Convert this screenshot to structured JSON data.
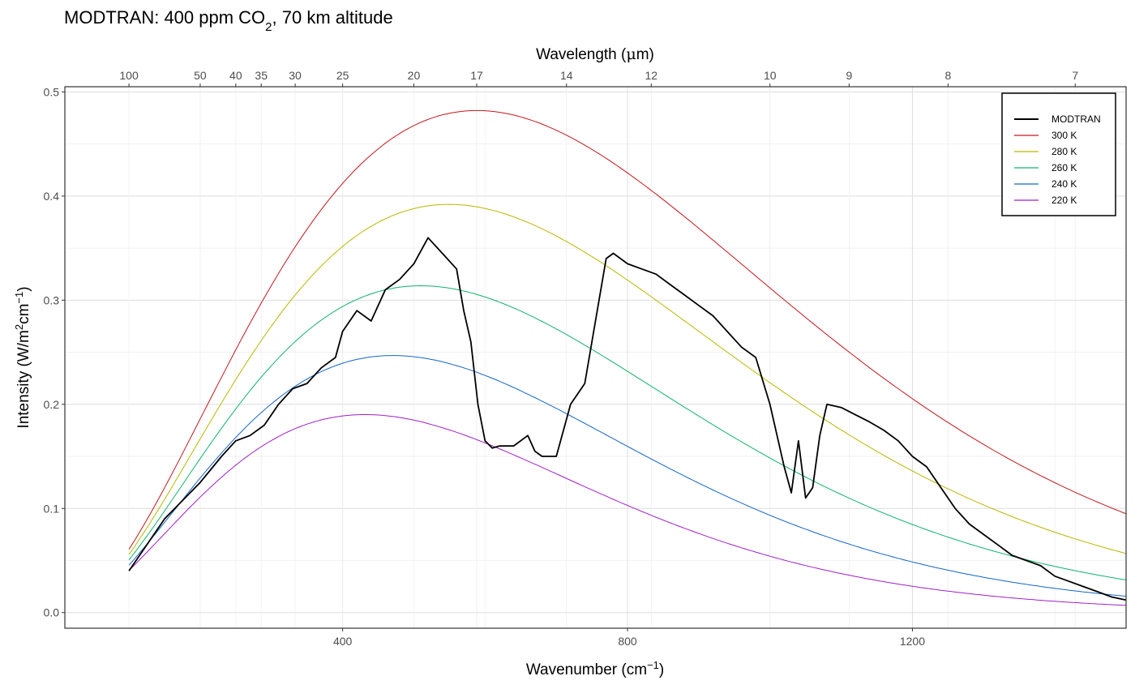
{
  "title": {
    "main": "MODTRAN: 400 ppm CO",
    "sub": "2",
    "rest": ", 70 km altitude"
  },
  "axes": {
    "x_title": "Wavenumber (cm",
    "x_sup": "−1",
    "x_close": ")",
    "top_title": "Wavelength (",
    "top_mu": "μ",
    "top_unit": "m)",
    "y_title_a": "Intensity (W/m",
    "y_sup1": "2",
    "y_title_b": "cm",
    "y_sup2": "−1",
    "y_close": ")"
  },
  "colors": {
    "modtran": "#000000",
    "300K": "#c4161c",
    "280K": "#b8b800",
    "260K": "#10b46a",
    "240K": "#1466c8",
    "220K": "#a020c8"
  },
  "chart_data": {
    "type": "line",
    "xlim": [
      10,
      1500
    ],
    "ylim": [
      -0.015,
      0.505
    ],
    "x_ticks": [
      400,
      800,
      1200
    ],
    "y_ticks": [
      0.0,
      0.1,
      0.2,
      0.3,
      0.4,
      0.5
    ],
    "y_tick_labels": [
      "0.0",
      "0.1",
      "0.2",
      "0.3",
      "0.4",
      "0.5"
    ],
    "top_ticks_wavelength_um": [
      100,
      50,
      40,
      35,
      30,
      25,
      20,
      17,
      14,
      12,
      10,
      9,
      8,
      7
    ],
    "grid": true,
    "legend_position": "top-right",
    "legend": [
      "MODTRAN",
      "300 K",
      "280 K",
      "260 K",
      "240 K",
      "220 K"
    ],
    "planck_x_range_cm-1": [
      100,
      1500
    ],
    "series": [
      {
        "name": "300 K",
        "temperature_K": 300
      },
      {
        "name": "280 K",
        "temperature_K": 280
      },
      {
        "name": "260 K",
        "temperature_K": 260
      },
      {
        "name": "240 K",
        "temperature_K": 240
      },
      {
        "name": "220 K",
        "temperature_K": 220
      },
      {
        "name": "MODTRAN",
        "x": [
          100,
          150,
          200,
          230,
          250,
          270,
          290,
          310,
          330,
          350,
          370,
          390,
          400,
          420,
          440,
          460,
          480,
          500,
          520,
          540,
          560,
          570,
          580,
          590,
          600,
          610,
          620,
          640,
          660,
          670,
          680,
          700,
          720,
          740,
          760,
          770,
          780,
          800,
          820,
          840,
          860,
          880,
          900,
          920,
          940,
          960,
          980,
          1000,
          1020,
          1030,
          1040,
          1050,
          1060,
          1070,
          1080,
          1100,
          1120,
          1140,
          1160,
          1180,
          1200,
          1220,
          1240,
          1260,
          1280,
          1300,
          1320,
          1340,
          1360,
          1380,
          1400,
          1420,
          1440,
          1460,
          1480,
          1500
        ],
        "values": [
          0.04,
          0.09,
          0.125,
          0.15,
          0.165,
          0.17,
          0.18,
          0.2,
          0.215,
          0.22,
          0.235,
          0.245,
          0.27,
          0.29,
          0.28,
          0.31,
          0.32,
          0.335,
          0.36,
          0.345,
          0.33,
          0.29,
          0.26,
          0.2,
          0.165,
          0.158,
          0.16,
          0.16,
          0.17,
          0.155,
          0.15,
          0.15,
          0.2,
          0.22,
          0.3,
          0.34,
          0.345,
          0.335,
          0.33,
          0.325,
          0.315,
          0.305,
          0.295,
          0.285,
          0.27,
          0.255,
          0.245,
          0.2,
          0.14,
          0.115,
          0.165,
          0.11,
          0.12,
          0.17,
          0.2,
          0.197,
          0.19,
          0.183,
          0.175,
          0.165,
          0.15,
          0.14,
          0.12,
          0.1,
          0.085,
          0.075,
          0.065,
          0.055,
          0.05,
          0.045,
          0.035,
          0.03,
          0.025,
          0.02,
          0.015,
          0.012
        ]
      }
    ]
  }
}
